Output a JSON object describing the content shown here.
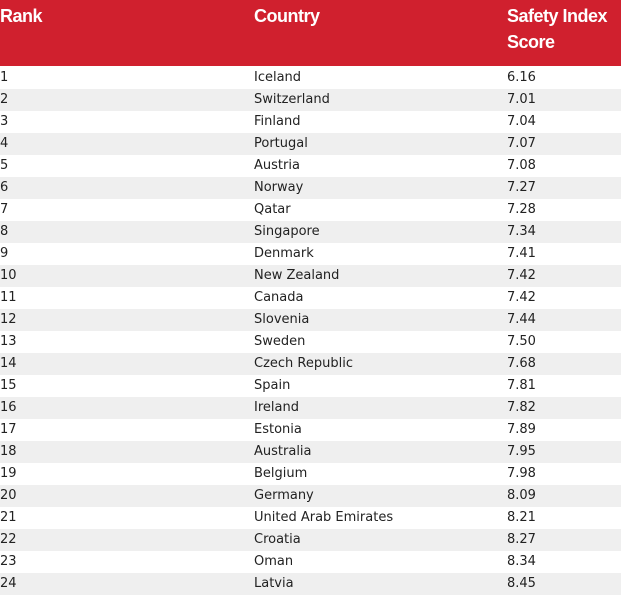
{
  "table": {
    "header": [
      "Rank",
      "Country",
      "Safety Index Score"
    ],
    "rows": [
      [
        1,
        "Iceland",
        "6.16"
      ],
      [
        2,
        "Switzerland",
        "7.01"
      ],
      [
        3,
        "Finland",
        "7.04"
      ],
      [
        4,
        "Portugal",
        "7.07"
      ],
      [
        5,
        "Austria",
        "7.08"
      ],
      [
        6,
        "Norway",
        "7.27"
      ],
      [
        7,
        "Qatar",
        "7.28"
      ],
      [
        8,
        "Singapore",
        "7.34"
      ],
      [
        9,
        "Denmark",
        "7.41"
      ],
      [
        10,
        "New Zealand",
        "7.42"
      ],
      [
        11,
        "Canada",
        "7.42"
      ],
      [
        12,
        "Slovenia",
        "7.44"
      ],
      [
        13,
        "Sweden",
        "7.50"
      ],
      [
        14,
        "Czech Republic",
        "7.68"
      ],
      [
        15,
        "Spain",
        "7.81"
      ],
      [
        16,
        "Ireland",
        "7.82"
      ],
      [
        17,
        "Estonia",
        "7.89"
      ],
      [
        18,
        "Australia",
        "7.95"
      ],
      [
        19,
        "Belgium",
        "7.98"
      ],
      [
        20,
        "Germany",
        "8.09"
      ],
      [
        21,
        "United Arab Emirates",
        "8.21"
      ],
      [
        22,
        "Croatia",
        "8.27"
      ],
      [
        23,
        "Oman",
        "8.34"
      ],
      [
        24,
        "Latvia",
        "8.45"
      ]
    ]
  }
}
